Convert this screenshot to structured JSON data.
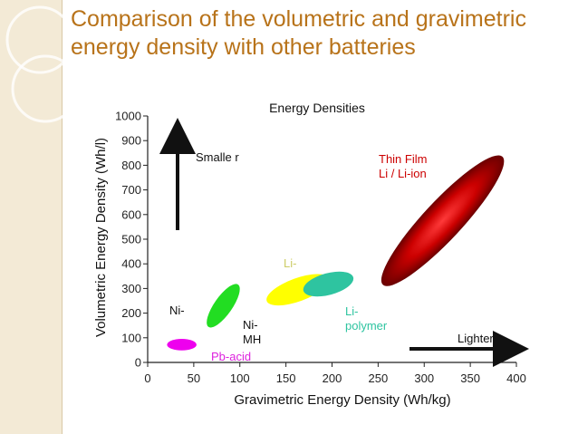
{
  "slide": {
    "title": "Comparison of the volumetric and gravimetric energy density with other batteries"
  },
  "colors": {
    "title": "#b8731a",
    "side_band": "#f3ead6",
    "thin_film": "#c00000",
    "li_ion": "#ffff00",
    "li_polymer": "#2ec4a0",
    "ni_mh": "#22dd22",
    "pb_acid": "#ee00ee"
  },
  "chart_data": {
    "type": "scatter",
    "title": "Energy Densities",
    "xlabel": "Gravimetric Energy Density (Wh/kg)",
    "ylabel": "Volumetric Energy Density (Wh/l)",
    "xlim": [
      0,
      400
    ],
    "ylim": [
      0,
      1000
    ],
    "x_ticks": [
      0,
      50,
      100,
      150,
      200,
      250,
      300,
      350,
      400
    ],
    "y_ticks": [
      0,
      100,
      200,
      300,
      400,
      500,
      600,
      700,
      800,
      900,
      1000
    ],
    "grid": false,
    "regions": [
      {
        "id": "thin-film",
        "label": "Thin Film\nLi / Li-ion",
        "color": "#c00000",
        "cx": 320,
        "cy": 575,
        "rx": 95,
        "ry": 30,
        "angle_deg": -47
      },
      {
        "id": "li-ion",
        "label": "Li-",
        "color": "#ffff00",
        "cx": 163,
        "cy": 295,
        "rx": 36,
        "ry": 18,
        "angle_deg": -20
      },
      {
        "id": "li-polymer",
        "label": "Li-\npolymer",
        "color": "#2ec4a0",
        "cx": 196,
        "cy": 318,
        "rx": 28,
        "ry": 17,
        "angle_deg": -15
      },
      {
        "id": "ni-mh",
        "label": "Ni-\nMH",
        "color": "#22dd22",
        "cx": 82,
        "cy": 230,
        "rx": 28,
        "ry": 14,
        "angle_deg": -55
      },
      {
        "id": "pb-acid",
        "label": "Pb-acid",
        "color": "#ee00ee",
        "cx": 37,
        "cy": 72,
        "rx": 16,
        "ry": 9,
        "angle_deg": 0
      }
    ],
    "annotations": [
      {
        "id": "smaller",
        "text": "Smalle r",
        "direction": "up"
      },
      {
        "id": "lighter",
        "text": "Lighter",
        "direction": "right"
      },
      {
        "id": "ni",
        "text": "Ni-"
      }
    ]
  }
}
